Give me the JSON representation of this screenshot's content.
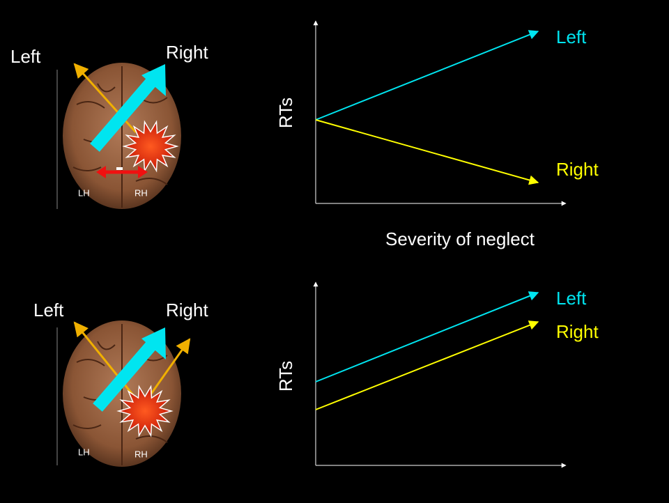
{
  "panels": [
    {
      "brain": {
        "left_label": "Left",
        "right_label": "Right",
        "lh": "LH",
        "rh": "RH"
      },
      "graph": {
        "y_label": "RTs",
        "x_label": "Severity of neglect",
        "lines": [
          {
            "label": "Left"
          },
          {
            "label": "Right"
          }
        ]
      }
    },
    {
      "brain": {
        "left_label": "Left",
        "right_label": "Right",
        "lh": "LH",
        "rh": "RH"
      },
      "graph": {
        "y_label": "RTs",
        "lines": [
          {
            "label": "Left"
          },
          {
            "label": "Right"
          }
        ]
      }
    }
  ]
}
